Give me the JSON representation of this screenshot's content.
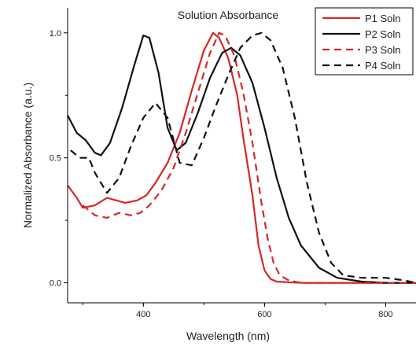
{
  "chart_data": {
    "type": "line",
    "title": "Solution Absorbance",
    "xlabel": "Wavelength (nm)",
    "ylabel": "Normalized Absorbance (a.u.)",
    "xlim": [
      275,
      850
    ],
    "ylim": [
      -0.08,
      1.1
    ],
    "xticks": [
      400,
      600,
      800
    ],
    "xtick_labels": [
      "400",
      "600",
      "800"
    ],
    "yticks": [
      0.0,
      0.5,
      1.0
    ],
    "ytick_labels": [
      "0.0",
      "0.5",
      "1.0"
    ],
    "grid": false,
    "legend_position": "top-right",
    "series": [
      {
        "name": "P1 Soln",
        "color": "#d62728",
        "style": "solid",
        "x": [
          275,
          290,
          300,
          320,
          340,
          355,
          370,
          390,
          405,
          420,
          440,
          460,
          480,
          500,
          515,
          525,
          540,
          555,
          565,
          580,
          590,
          600,
          610,
          620,
          640,
          660,
          700,
          800,
          850
        ],
        "y": [
          0.39,
          0.34,
          0.3,
          0.31,
          0.34,
          0.33,
          0.32,
          0.33,
          0.35,
          0.4,
          0.48,
          0.6,
          0.77,
          0.93,
          1.0,
          0.98,
          0.9,
          0.75,
          0.58,
          0.35,
          0.15,
          0.05,
          0.015,
          0.005,
          0.002,
          0.0,
          0.0,
          0.0,
          0.0
        ]
      },
      {
        "name": "P2 Soln",
        "color": "#111111",
        "style": "solid",
        "x": [
          275,
          290,
          305,
          320,
          330,
          345,
          365,
          385,
          400,
          410,
          425,
          440,
          455,
          470,
          490,
          510,
          530,
          545,
          560,
          580,
          600,
          620,
          640,
          660,
          690,
          720,
          760,
          800,
          850
        ],
        "y": [
          0.67,
          0.6,
          0.57,
          0.52,
          0.51,
          0.56,
          0.7,
          0.87,
          0.99,
          0.98,
          0.84,
          0.62,
          0.53,
          0.56,
          0.68,
          0.82,
          0.92,
          0.94,
          0.91,
          0.8,
          0.62,
          0.42,
          0.26,
          0.15,
          0.06,
          0.02,
          0.005,
          0.0,
          0.0
        ]
      },
      {
        "name": "P3 Soln",
        "color": "#d62728",
        "style": "dashed",
        "x": [
          300,
          320,
          340,
          360,
          380,
          395,
          410,
          430,
          450,
          470,
          490,
          510,
          525,
          535,
          550,
          565,
          580,
          595,
          605,
          615,
          625,
          640,
          660,
          700,
          800,
          850
        ],
        "y": [
          0.31,
          0.27,
          0.26,
          0.28,
          0.27,
          0.28,
          0.31,
          0.37,
          0.46,
          0.6,
          0.76,
          0.92,
          1.0,
          0.99,
          0.91,
          0.76,
          0.56,
          0.32,
          0.18,
          0.08,
          0.03,
          0.01,
          0.0,
          0.0,
          0.0,
          0.0
        ]
      },
      {
        "name": "P4 Soln",
        "color": "#111111",
        "style": "dashed",
        "x": [
          280,
          295,
          310,
          320,
          340,
          360,
          380,
          400,
          420,
          440,
          460,
          480,
          500,
          520,
          540,
          560,
          580,
          595,
          610,
          630,
          650,
          670,
          690,
          710,
          730,
          760,
          800,
          830,
          850
        ],
        "y": [
          0.53,
          0.5,
          0.5,
          0.44,
          0.36,
          0.42,
          0.55,
          0.66,
          0.72,
          0.66,
          0.48,
          0.47,
          0.58,
          0.71,
          0.83,
          0.94,
          0.99,
          1.0,
          0.97,
          0.86,
          0.66,
          0.4,
          0.2,
          0.08,
          0.03,
          0.02,
          0.02,
          0.01,
          0.0
        ]
      }
    ]
  }
}
